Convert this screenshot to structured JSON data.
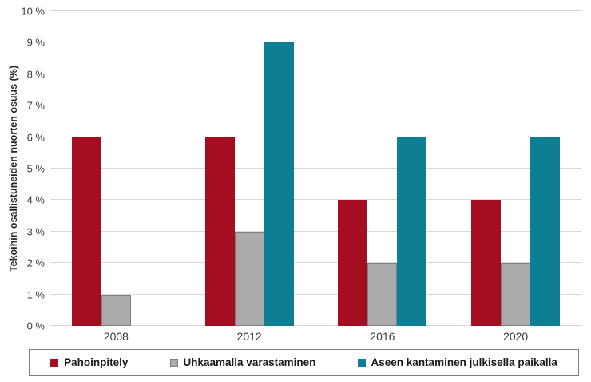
{
  "chart_data": {
    "type": "bar",
    "title": "",
    "xlabel": "",
    "ylabel": "Tekoihin osallistuneiden nuorten osuus (%)",
    "ylim": [
      0,
      10
    ],
    "ytick_step": 1,
    "ytick_labels": [
      "0 %",
      "1 %",
      "2 %",
      "3 %",
      "4 %",
      "5 %",
      "6 %",
      "7 %",
      "8 %",
      "9 %",
      "10 %"
    ],
    "grid": true,
    "gridline_color": "#d9d9d9",
    "legend_position": "bottom",
    "categories": [
      "2008",
      "2012",
      "2016",
      "2020"
    ],
    "series": [
      {
        "name": "Pahoinpitely",
        "color": "#a50e21",
        "border_color": "",
        "values": [
          6,
          6,
          4,
          4
        ]
      },
      {
        "name": "Uhkaamalla varastaminen",
        "color": "#ababab",
        "border_color": "#7f7f7f",
        "values": [
          1,
          3,
          2,
          2
        ]
      },
      {
        "name": "Aseen kantaminen julkisella paikalla",
        "color": "#0e7e94",
        "border_color": "",
        "values": [
          0,
          9,
          6,
          6
        ]
      }
    ]
  }
}
